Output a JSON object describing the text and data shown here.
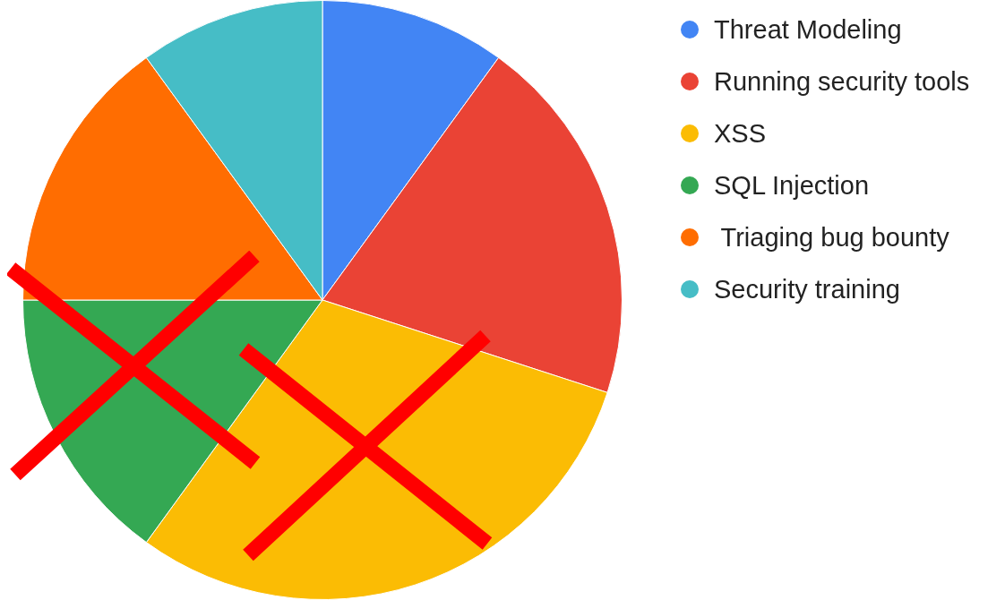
{
  "chart_data": {
    "type": "pie",
    "categories": [
      "Threat Modeling",
      "Running security tools",
      "XSS",
      "SQL Injection",
      " Triaging bug bounty",
      "Security training"
    ],
    "values": [
      10,
      20,
      30,
      15,
      15,
      10
    ],
    "colors": [
      "#4285f4",
      "#ea4335",
      "#fbbc04",
      "#34a853",
      "#ff6d01",
      "#46bdc6"
    ],
    "legend": "right"
  }
}
